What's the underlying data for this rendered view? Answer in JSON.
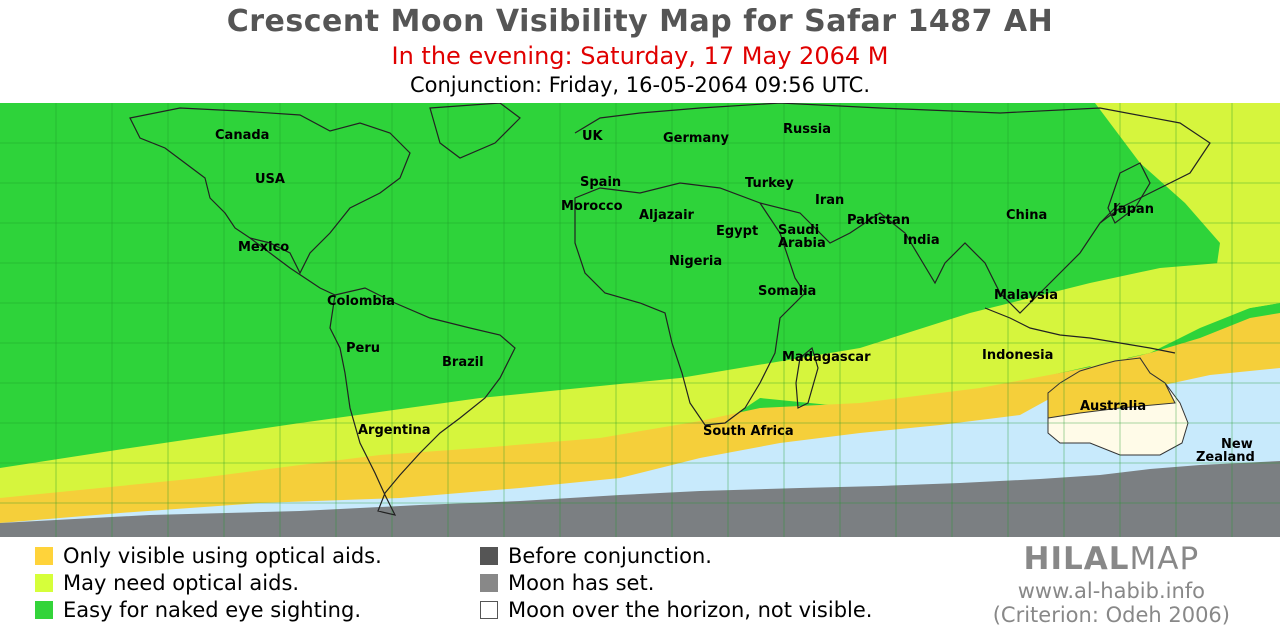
{
  "header": {
    "title": "Crescent Moon Visibility Map for Safar 1487 AH",
    "subtitle": "In the evening: Saturday, 17 May 2064 M",
    "conjunction": "Conjunction: Friday, 16-05-2064 09:56 UTC."
  },
  "map": {
    "labels": [
      "Canada",
      "USA",
      "Mexico",
      "Colombia",
      "Peru",
      "Brazil",
      "Argentina",
      "UK",
      "Germany",
      "Russia",
      "Spain",
      "Morocco",
      "Aljazair",
      "Turkey",
      "Iran",
      "Egypt",
      "Saudi",
      "Arabia",
      "Pakistan",
      "India",
      "China",
      "Japan",
      "Nigeria",
      "Somalia",
      "Madagascar",
      "South Africa",
      "Malaysia",
      "Indonesia",
      "Australia",
      "New",
      "Zealand"
    ],
    "zone_colors": {
      "naked_eye": "#2ed33a",
      "may_need_aids": "#d6f53d",
      "optical_only": "#f5cf3a",
      "not_visible": "#c8eafc",
      "moon_set": "#7b7f82",
      "australia_not_visible": "#fffbe8"
    }
  },
  "legend": {
    "left": [
      {
        "label": "Only visible using optical aids.",
        "color": "#ffd33a"
      },
      {
        "label": "May need optical aids.",
        "color": "#d6ff3a"
      },
      {
        "label": "Easy for naked eye sighting.",
        "color": "#33d43a"
      }
    ],
    "right": [
      {
        "label": "Before conjunction.",
        "color": "#555555"
      },
      {
        "label": "Moon has set.",
        "color": "#888888"
      },
      {
        "label": "Moon over the horizon, not visible.",
        "color": "#ffffff"
      }
    ]
  },
  "brand": {
    "logo_bold": "HILAL",
    "logo_rest": "MAP",
    "url": "www.al-habib.info",
    "criterion": "(Criterion: Odeh 2006)"
  }
}
